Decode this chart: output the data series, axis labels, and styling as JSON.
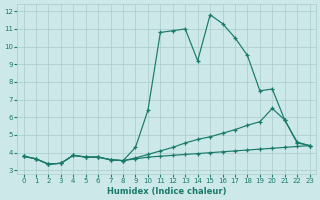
{
  "xlabel": "Humidex (Indice chaleur)",
  "bg_color": "#cce8e8",
  "grid_color": "#aacccc",
  "line_color": "#1a7a6a",
  "xlim": [
    -0.5,
    23.5
  ],
  "ylim": [
    2.8,
    12.4
  ],
  "yticks": [
    3,
    4,
    5,
    6,
    7,
    8,
    9,
    10,
    11,
    12
  ],
  "xticks": [
    0,
    1,
    2,
    3,
    4,
    5,
    6,
    7,
    8,
    9,
    10,
    11,
    12,
    13,
    14,
    15,
    16,
    17,
    18,
    19,
    20,
    21,
    22,
    23
  ],
  "line1_x": [
    0,
    1,
    2,
    3,
    4,
    5,
    6,
    7,
    8,
    9,
    10,
    11,
    12,
    13,
    14,
    15,
    16,
    17,
    18,
    19,
    20,
    21,
    22,
    23
  ],
  "line1_y": [
    3.8,
    3.65,
    3.35,
    3.4,
    3.85,
    3.75,
    3.75,
    3.6,
    3.55,
    4.3,
    6.4,
    10.8,
    10.9,
    11.0,
    9.2,
    11.8,
    11.3,
    10.5,
    9.5,
    7.5,
    7.6,
    5.85,
    4.55,
    4.4
  ],
  "line2_x": [
    0,
    1,
    2,
    3,
    4,
    5,
    6,
    7,
    8,
    9,
    10,
    11,
    12,
    13,
    14,
    15,
    16,
    17,
    18,
    19,
    20,
    21,
    22,
    23
  ],
  "line2_y": [
    3.8,
    3.65,
    3.35,
    3.4,
    3.85,
    3.75,
    3.75,
    3.6,
    3.55,
    3.7,
    3.9,
    4.1,
    4.3,
    4.55,
    4.75,
    4.9,
    5.1,
    5.3,
    5.55,
    5.75,
    6.5,
    5.85,
    4.6,
    4.4
  ],
  "line3_x": [
    0,
    1,
    2,
    3,
    4,
    5,
    6,
    7,
    8,
    9,
    10,
    11,
    12,
    13,
    14,
    15,
    16,
    17,
    18,
    19,
    20,
    21,
    22,
    23
  ],
  "line3_y": [
    3.8,
    3.65,
    3.35,
    3.4,
    3.85,
    3.75,
    3.75,
    3.6,
    3.55,
    3.65,
    3.75,
    3.8,
    3.85,
    3.9,
    3.95,
    4.0,
    4.05,
    4.1,
    4.15,
    4.2,
    4.25,
    4.3,
    4.35,
    4.4
  ]
}
